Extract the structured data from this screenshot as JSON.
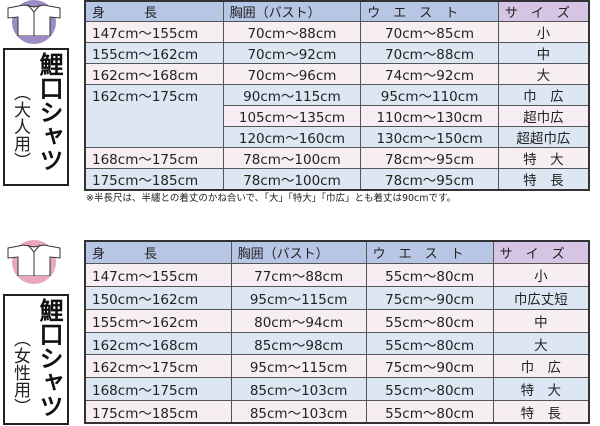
{
  "colors": {
    "adult_icon": "#9d8cc4",
    "female_icon": "#e8a6bf",
    "header": "#b7c6e4",
    "size_header": "#d6c4e4",
    "row_pink": "#f7eef3",
    "row_blue": "#dde6f3"
  },
  "adult": {
    "title": "鯉口シャツ",
    "subtitle": "（大人用）",
    "icon": "shirt-icon",
    "headers": [
      "身　　　長",
      "胸囲（バスト）",
      "ウ　エ　ス　ト",
      "サ　イ　ズ"
    ],
    "rows": [
      [
        "147cm～155cm",
        "70cm～88cm",
        "70cm～85cm",
        "小"
      ],
      [
        "155cm～162cm",
        "70cm～92cm",
        "70cm～88cm",
        "中"
      ],
      [
        "162cm～168cm",
        "70cm～96cm",
        "74cm～92cm",
        "大"
      ],
      [
        "162cm～175cm",
        "90cm～115cm",
        "95cm～110cm",
        "巾　広"
      ],
      [
        "",
        "105cm～135cm",
        "110cm～130cm",
        "超巾広"
      ],
      [
        "",
        "120cm～160cm",
        "130cm～150cm",
        "超超巾広"
      ],
      [
        "168cm～175cm",
        "78cm～100cm",
        "78cm～95cm",
        "特　大"
      ],
      [
        "175cm～185cm",
        "78cm～100cm",
        "78cm～95cm",
        "特　長"
      ]
    ],
    "note": "※半長尺は、半纏との着丈のかね合いで、「大」「特大」「巾広」とも着丈は90cmです。"
  },
  "female": {
    "title": "鯉口シャツ",
    "subtitle": "（女性用）",
    "icon": "shirt-icon",
    "headers": [
      "身　　　長",
      "胸囲（バスト）",
      "ウ　エ　ス　ト",
      "サ　イ　ズ"
    ],
    "rows": [
      [
        "147cm～155cm",
        "77cm～88cm",
        "55cm～80cm",
        "小"
      ],
      [
        "150cm～162cm",
        "95cm～115cm",
        "75cm～90cm",
        "巾広丈短"
      ],
      [
        "155cm～162cm",
        "80cm～94cm",
        "55cm～80cm",
        "中"
      ],
      [
        "162cm～168cm",
        "85cm～98cm",
        "55cm～80cm",
        "大"
      ],
      [
        "162cm～175cm",
        "95cm～115cm",
        "75cm～90cm",
        "巾　広"
      ],
      [
        "168cm～175cm",
        "85cm～103cm",
        "55cm～80cm",
        "特　大"
      ],
      [
        "175cm～185cm",
        "85cm～103cm",
        "55cm～80cm",
        "特　長"
      ]
    ]
  }
}
